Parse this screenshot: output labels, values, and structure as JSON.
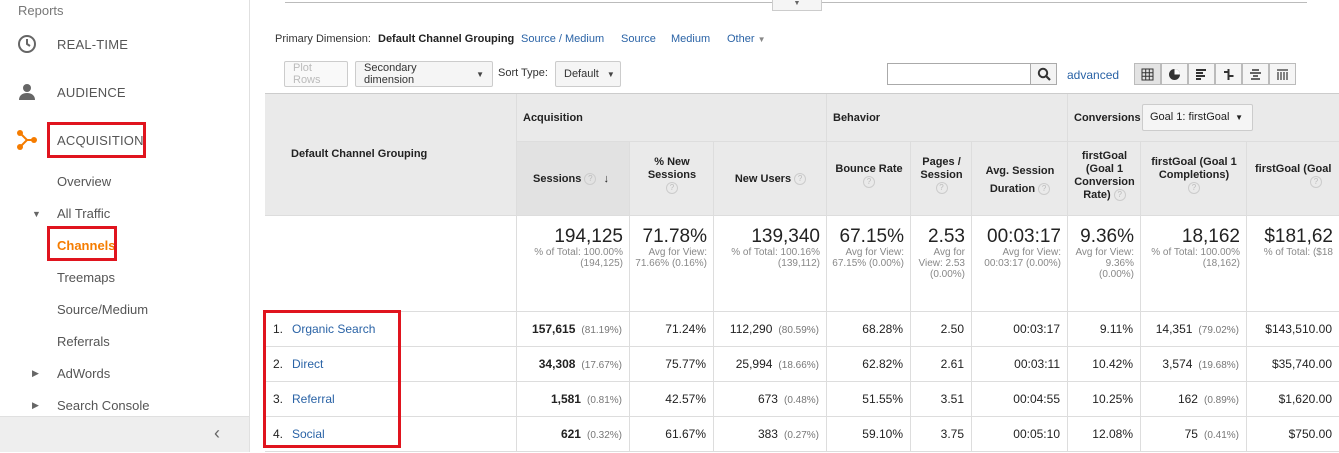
{
  "sidebar": {
    "header": "Reports",
    "realtime": "REAL-TIME",
    "audience": "AUDIENCE",
    "acquisition": "ACQUISITION",
    "overview": "Overview",
    "all_traffic": "All Traffic",
    "channels": "Channels",
    "treemaps": "Treemaps",
    "source_medium": "Source/Medium",
    "referrals": "Referrals",
    "adwords": "AdWords",
    "search_console": "Search Console",
    "collapse_glyph": "‹"
  },
  "dimension_bar": {
    "label": "Primary Dimension:",
    "active": "Default Channel Grouping",
    "links": [
      "Source / Medium",
      "Source",
      "Medium"
    ],
    "other": "Other"
  },
  "toolbar": {
    "plot_rows": "Plot Rows",
    "secondary_dimension": "Secondary dimension",
    "sort_type_label": "Sort Type:",
    "sort_type_value": "Default",
    "search_value": "",
    "advanced": "advanced"
  },
  "table": {
    "dim_header": "Default Channel Grouping",
    "group_acquisition": "Acquisition",
    "group_behavior": "Behavior",
    "group_conversions": "Conversions",
    "goal_select": "Goal 1: firstGoal",
    "col_sessions": "Sessions",
    "col_new_sessions": "% New Sessions",
    "col_new_users": "New Users",
    "col_bounce": "Bounce Rate",
    "col_pages": "Pages / Session",
    "col_duration": "Avg. Session Duration",
    "col_conv_rate": "firstGoal (Goal 1 Conversion Rate)",
    "col_completions": "firstGoal (Goal 1 Completions)",
    "col_value": "firstGoal (Goal",
    "totals": {
      "sessions": "194,125",
      "sessions_sub": "% of Total: 100.00% (194,125)",
      "new_sessions": "71.78%",
      "new_sessions_sub": "Avg for View: 71.66% (0.16%)",
      "new_users": "139,340",
      "new_users_sub": "% of Total: 100.16% (139,112)",
      "bounce": "67.15%",
      "bounce_sub": "Avg for View: 67.15% (0.00%)",
      "pages": "2.53",
      "pages_sub": "Avg for View: 2.53 (0.00%)",
      "duration": "00:03:17",
      "duration_sub": "Avg for View: 00:03:17 (0.00%)",
      "conv_rate": "9.36%",
      "conv_rate_sub": "Avg for View: 9.36% (0.00%)",
      "completions": "18,162",
      "completions_sub": "% of Total: 100.00% (18,162)",
      "value": "$181,62",
      "value_sub": "% of Total: ($18"
    },
    "rows": [
      {
        "num": "1.",
        "name": "Organic Search",
        "sessions": "157,615",
        "sessions_pct": "(81.19%)",
        "new_sessions": "71.24%",
        "new_users": "112,290",
        "new_users_pct": "(80.59%)",
        "bounce": "68.28%",
        "pages": "2.50",
        "duration": "00:03:17",
        "conv_rate": "9.11%",
        "completions": "14,351",
        "completions_pct": "(79.02%)",
        "value": "$143,510.00"
      },
      {
        "num": "2.",
        "name": "Direct",
        "sessions": "34,308",
        "sessions_pct": "(17.67%)",
        "new_sessions": "75.77%",
        "new_users": "25,994",
        "new_users_pct": "(18.66%)",
        "bounce": "62.82%",
        "pages": "2.61",
        "duration": "00:03:11",
        "conv_rate": "10.42%",
        "completions": "3,574",
        "completions_pct": "(19.68%)",
        "value": "$35,740.00"
      },
      {
        "num": "3.",
        "name": "Referral",
        "sessions": "1,581",
        "sessions_pct": "(0.81%)",
        "new_sessions": "42.57%",
        "new_users": "673",
        "new_users_pct": "(0.48%)",
        "bounce": "51.55%",
        "pages": "3.51",
        "duration": "00:04:55",
        "conv_rate": "10.25%",
        "completions": "162",
        "completions_pct": "(0.89%)",
        "value": "$1,620.00"
      },
      {
        "num": "4.",
        "name": "Social",
        "sessions": "621",
        "sessions_pct": "(0.32%)",
        "new_sessions": "61.67%",
        "new_users": "383",
        "new_users_pct": "(0.27%)",
        "bounce": "59.10%",
        "pages": "3.75",
        "duration": "00:05:10",
        "conv_rate": "12.08%",
        "completions": "75",
        "completions_pct": "(0.41%)",
        "value": "$750.00"
      }
    ]
  },
  "colors": {
    "accent": "#f57c00",
    "link": "#2a63a6",
    "highlight": "#e0141e"
  }
}
